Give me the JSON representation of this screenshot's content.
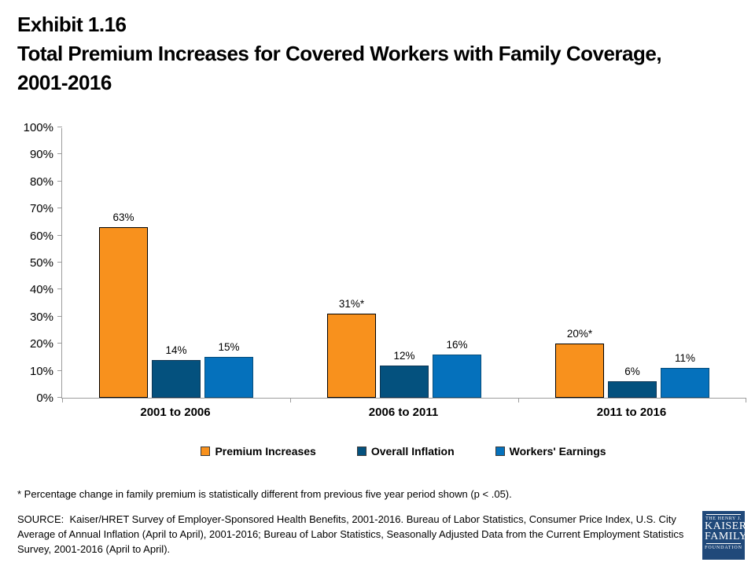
{
  "header": {
    "exhibit": "Exhibit 1.16",
    "title_lines": [
      "Total Premium Increases for Covered Workers with Family Coverage,",
      "2001-2016"
    ]
  },
  "chart_data": {
    "type": "bar",
    "title": "",
    "categories": [
      "2001 to 2006",
      "2006 to 2011",
      "2011 to 2016"
    ],
    "series": [
      {
        "name": "Premium Increases",
        "color": "#F8911D",
        "border": "#000000",
        "values": [
          63,
          31,
          20
        ],
        "labels": [
          "63%",
          "31%*",
          "20%*"
        ]
      },
      {
        "name": "Overall Inflation",
        "color": "#04517E",
        "border": "#0D3553",
        "values": [
          14,
          12,
          6
        ],
        "labels": [
          "14%",
          "12%",
          "6%"
        ]
      },
      {
        "name": "Workers' Earnings",
        "color": "#0571BC",
        "border": "#084E7C",
        "values": [
          15,
          16,
          11
        ],
        "labels": [
          "15%",
          "16%",
          "11%"
        ]
      }
    ],
    "xlabel": "",
    "ylabel": "",
    "ylim": [
      0,
      100
    ],
    "y_ticks": [
      {
        "label": "0%",
        "value": 0
      },
      {
        "label": "10%",
        "value": 10
      },
      {
        "label": "20%",
        "value": 20
      },
      {
        "label": "30%",
        "value": 30
      },
      {
        "label": "40%",
        "value": 40
      },
      {
        "label": "50%",
        "value": 50
      },
      {
        "label": "60%",
        "value": 60
      },
      {
        "label": "70%",
        "value": 70
      },
      {
        "label": "80%",
        "value": 80
      },
      {
        "label": "90%",
        "value": 90
      },
      {
        "label": "100%",
        "value": 100
      }
    ],
    "grid": false,
    "legend_position": "bottom"
  },
  "footnote": "* Percentage change in family premium is statistically different from previous five year period shown (p < .05).",
  "source": "SOURCE:  Kaiser/HRET Survey of Employer-Sponsored Health Benefits, 2001-2016. Bureau of Labor Statistics, Consumer Price Index, U.S. City Average of Annual Inflation (April to April), 2001-2016; Bureau of Labor Statistics, Seasonally Adjusted Data from the Current Employment Statistics Survey, 2001-2016 (April to April).",
  "logo": {
    "top": "THE HENRY J.",
    "name1": "KAISER",
    "name2": "FAMILY",
    "bottom": "FOUNDATION",
    "bg": "#20497A"
  }
}
